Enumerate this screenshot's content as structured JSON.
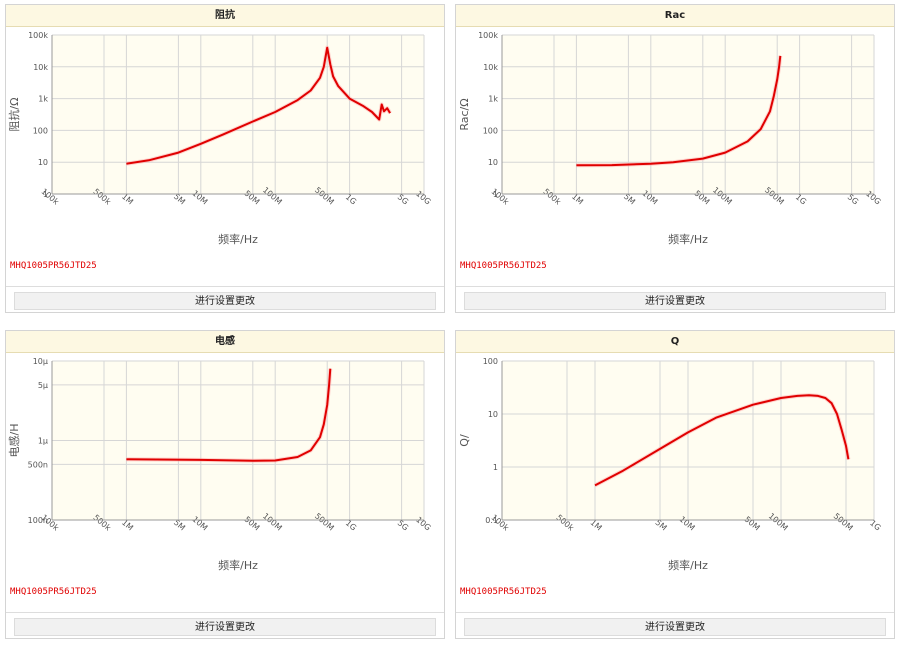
{
  "button_label": "进行设置更改",
  "chart_data": [
    {
      "type": "line",
      "title": "阻抗",
      "xlabel": "频率/Hz",
      "ylabel": "阻抗/Ω",
      "part_no": "MHQ1005PR56JTD25",
      "x_scale": "log",
      "y_scale": "log",
      "xlim": [
        100000,
        10000000000
      ],
      "ylim": [
        1,
        100000
      ],
      "x_ticks": [
        {
          "v": 100000,
          "label": "100k"
        },
        {
          "v": 500000,
          "label": "500k"
        },
        {
          "v": 1000000,
          "label": "1M"
        },
        {
          "v": 5000000,
          "label": "5M"
        },
        {
          "v": 10000000,
          "label": "10M"
        },
        {
          "v": 50000000,
          "label": "50M"
        },
        {
          "v": 100000000,
          "label": "100M"
        },
        {
          "v": 500000000,
          "label": "500M"
        },
        {
          "v": 1000000000,
          "label": "1G"
        },
        {
          "v": 5000000000,
          "label": "5G"
        },
        {
          "v": 10000000000,
          "label": "10G"
        }
      ],
      "y_ticks": [
        {
          "v": 1,
          "label": "1"
        },
        {
          "v": 10,
          "label": "10"
        },
        {
          "v": 100,
          "label": "100"
        },
        {
          "v": 1000,
          "label": "1k"
        },
        {
          "v": 10000,
          "label": "10k"
        },
        {
          "v": 100000,
          "label": "100k"
        }
      ],
      "x": [
        1000000,
        2000000,
        5000000,
        10000000,
        20000000,
        50000000,
        100000000,
        200000000,
        300000000,
        400000000,
        450000000,
        500000000,
        550000000,
        600000000,
        700000000,
        1000000000,
        1500000000,
        2000000000,
        2500000000,
        2700000000,
        2900000000,
        3200000000,
        3500000000
      ],
      "y": [
        9,
        11.5,
        20,
        38,
        75,
        190,
        380,
        900,
        1800,
        4500,
        10000,
        40000,
        12000,
        5000,
        2500,
        1000,
        600,
        380,
        220,
        650,
        400,
        500,
        350
      ]
    },
    {
      "type": "line",
      "title": "Rac",
      "xlabel": "频率/Hz",
      "ylabel": "Rac/Ω",
      "part_no": "MHQ1005PR56JTD25",
      "x_scale": "log",
      "y_scale": "log",
      "xlim": [
        100000,
        10000000000
      ],
      "ylim": [
        1,
        100000
      ],
      "x_ticks": [
        {
          "v": 100000,
          "label": "100k"
        },
        {
          "v": 500000,
          "label": "500k"
        },
        {
          "v": 1000000,
          "label": "1M"
        },
        {
          "v": 5000000,
          "label": "5M"
        },
        {
          "v": 10000000,
          "label": "10M"
        },
        {
          "v": 50000000,
          "label": "50M"
        },
        {
          "v": 100000000,
          "label": "100M"
        },
        {
          "v": 500000000,
          "label": "500M"
        },
        {
          "v": 1000000000,
          "label": "1G"
        },
        {
          "v": 5000000000,
          "label": "5G"
        },
        {
          "v": 10000000000,
          "label": "10G"
        }
      ],
      "y_ticks": [
        {
          "v": 1,
          "label": "1"
        },
        {
          "v": 10,
          "label": "10"
        },
        {
          "v": 100,
          "label": "100"
        },
        {
          "v": 1000,
          "label": "1k"
        },
        {
          "v": 10000,
          "label": "10k"
        },
        {
          "v": 100000,
          "label": "100k"
        }
      ],
      "x": [
        1000000,
        3000000,
        10000000,
        20000000,
        50000000,
        100000000,
        200000000,
        300000000,
        400000000,
        450000000,
        500000000,
        530000000,
        550000000
      ],
      "y": [
        8,
        8.1,
        9,
        10,
        13,
        20,
        45,
        110,
        400,
        1200,
        4000,
        10000,
        22000
      ]
    },
    {
      "type": "line",
      "title": "电感",
      "xlabel": "频率/Hz",
      "ylabel": "电感/H",
      "part_no": "MHQ1005PR56JTD25",
      "x_scale": "log",
      "y_scale": "log",
      "xlim": [
        100000,
        10000000000
      ],
      "ylim": [
        1e-07,
        1e-05
      ],
      "x_ticks": [
        {
          "v": 100000,
          "label": "100k"
        },
        {
          "v": 500000,
          "label": "500k"
        },
        {
          "v": 1000000,
          "label": "1M"
        },
        {
          "v": 5000000,
          "label": "5M"
        },
        {
          "v": 10000000,
          "label": "10M"
        },
        {
          "v": 50000000,
          "label": "50M"
        },
        {
          "v": 100000000,
          "label": "100M"
        },
        {
          "v": 500000000,
          "label": "500M"
        },
        {
          "v": 1000000000,
          "label": "1G"
        },
        {
          "v": 5000000000,
          "label": "5G"
        },
        {
          "v": 10000000000,
          "label": "10G"
        }
      ],
      "y_ticks": [
        {
          "v": 1e-07,
          "label": "100n"
        },
        {
          "v": 5e-07,
          "label": "500n"
        },
        {
          "v": 1e-06,
          "label": "1μ"
        },
        {
          "v": 5e-06,
          "label": "5μ"
        },
        {
          "v": 1e-05,
          "label": "10μ"
        }
      ],
      "x": [
        1000000,
        10000000,
        50000000,
        100000000,
        200000000,
        300000000,
        400000000,
        450000000,
        500000000,
        530000000,
        550000000
      ],
      "y": [
        5.8e-07,
        5.7e-07,
        5.55e-07,
        5.6e-07,
        6.2e-07,
        7.5e-07,
        1.1e-06,
        1.6e-06,
        2.8e-06,
        5e-06,
        8e-06
      ]
    },
    {
      "type": "line",
      "title": "Q",
      "xlabel": "频率/Hz",
      "ylabel": "Q/",
      "part_no": "MHQ1005PR56JTD25",
      "x_scale": "log",
      "y_scale": "log",
      "xlim": [
        100000,
        1000000000
      ],
      "ylim": [
        0.1,
        100
      ],
      "x_ticks": [
        {
          "v": 100000,
          "label": "100k"
        },
        {
          "v": 500000,
          "label": "500k"
        },
        {
          "v": 1000000,
          "label": "1M"
        },
        {
          "v": 5000000,
          "label": "5M"
        },
        {
          "v": 10000000,
          "label": "10M"
        },
        {
          "v": 50000000,
          "label": "50M"
        },
        {
          "v": 100000000,
          "label": "100M"
        },
        {
          "v": 500000000,
          "label": "500M"
        },
        {
          "v": 1000000000,
          "label": "1G"
        }
      ],
      "y_ticks": [
        {
          "v": 0.1,
          "label": "0.1"
        },
        {
          "v": 1,
          "label": "1"
        },
        {
          "v": 10,
          "label": "10"
        },
        {
          "v": 100,
          "label": "100"
        }
      ],
      "x": [
        1000000,
        2000000,
        5000000,
        10000000,
        20000000,
        50000000,
        100000000,
        150000000,
        200000000,
        250000000,
        300000000,
        350000000,
        400000000,
        450000000,
        500000000,
        530000000
      ],
      "y": [
        0.45,
        0.85,
        2.2,
        4.5,
        8.5,
        15,
        20,
        22,
        22.5,
        22,
        20,
        16,
        10,
        5,
        2.5,
        1.4
      ]
    }
  ]
}
